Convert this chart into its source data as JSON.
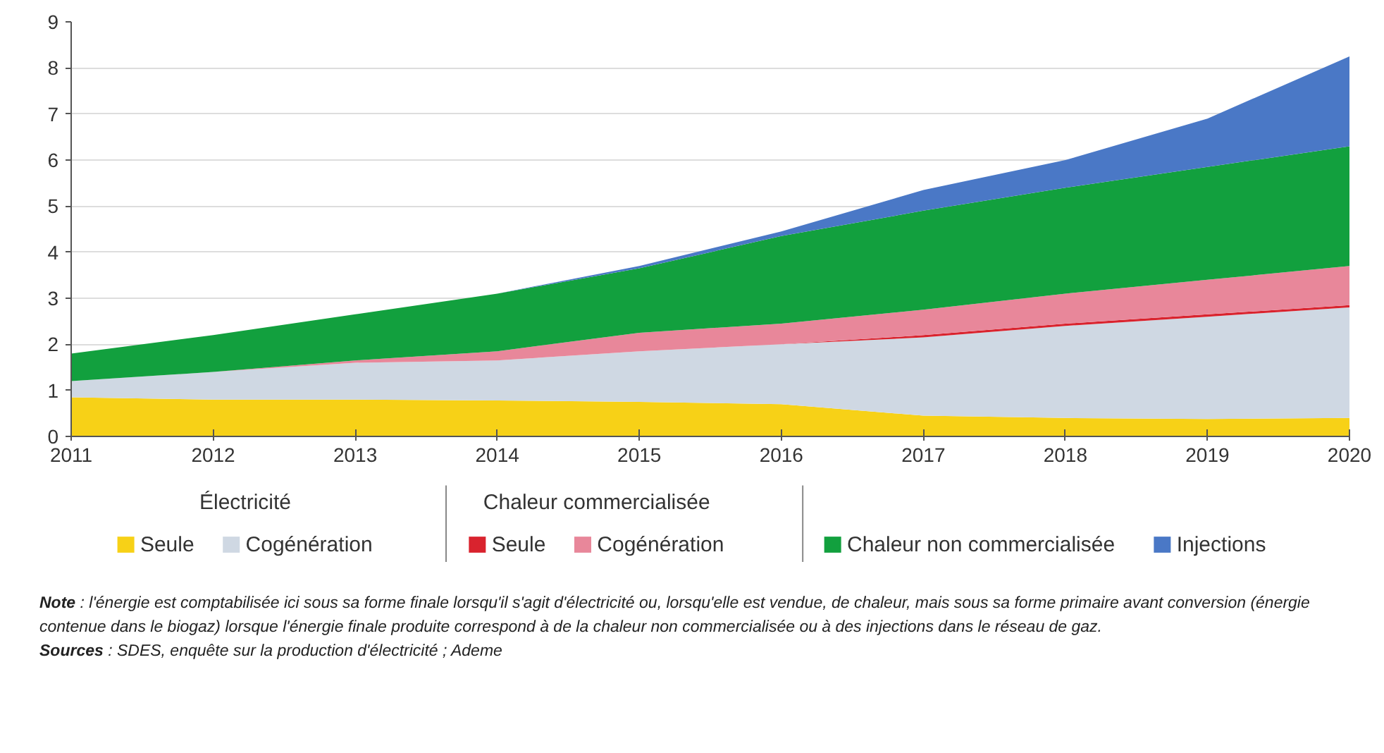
{
  "chart_data": {
    "type": "area",
    "stacked": true,
    "x": [
      2011,
      2012,
      2013,
      2014,
      2015,
      2016,
      2017,
      2018,
      2019,
      2020
    ],
    "xlim": [
      2011,
      2020
    ],
    "xticks": [
      2011,
      2012,
      2013,
      2014,
      2015,
      2016,
      2017,
      2018,
      2019,
      2020
    ],
    "ylim": [
      0,
      9
    ],
    "yticks": [
      0,
      1,
      2,
      3,
      4,
      5,
      6,
      7,
      8,
      9
    ],
    "grid": "y",
    "legend": "bottom",
    "series": [
      {
        "name": "Seule",
        "color": "#f7d117",
        "values": [
          0.85,
          0.8,
          0.8,
          0.78,
          0.75,
          0.7,
          0.45,
          0.4,
          0.38,
          0.4
        ]
      },
      {
        "name": "Cogénération",
        "color": "#cfd8e3",
        "values": [
          0.35,
          0.6,
          0.8,
          0.87,
          1.1,
          1.3,
          1.7,
          2.0,
          2.22,
          2.4
        ]
      },
      {
        "name": "Seule",
        "color": "#d9232e",
        "values": [
          0,
          0,
          0,
          0,
          0,
          0,
          0.05,
          0.05,
          0.05,
          0.05
        ]
      },
      {
        "name": "Cogénération",
        "color": "#e8879a",
        "values": [
          0,
          0,
          0.05,
          0.2,
          0.4,
          0.45,
          0.55,
          0.65,
          0.75,
          0.85
        ]
      },
      {
        "name": "Chaleur non commercialisée",
        "color": "#12a03e",
        "values": [
          0.6,
          0.8,
          1.0,
          1.25,
          1.4,
          1.9,
          2.15,
          2.3,
          2.45,
          2.6
        ]
      },
      {
        "name": "Injections",
        "color": "#4a78c6",
        "values": [
          0,
          0,
          0,
          0,
          0.05,
          0.1,
          0.45,
          0.6,
          1.05,
          1.95
        ]
      }
    ],
    "annotations": [
      "Électricité",
      "Chaleur commercialisée",
      "Note : l'énergie est comptabilisée ici sous sa forme finale lorsqu'il s'agit d'électricité ou, lorsqu'elle est vendue, de chaleur, mais sous sa forme primaire avant conversion (énergie contenue dans le biogaz) lorsque l'énergie finale produite correspond à de la chaleur non commercialisée ou à des injections dans le réseau de gaz.",
      "Sources : SDES, enquête sur la production d'électricité ; Ademe"
    ]
  }
}
